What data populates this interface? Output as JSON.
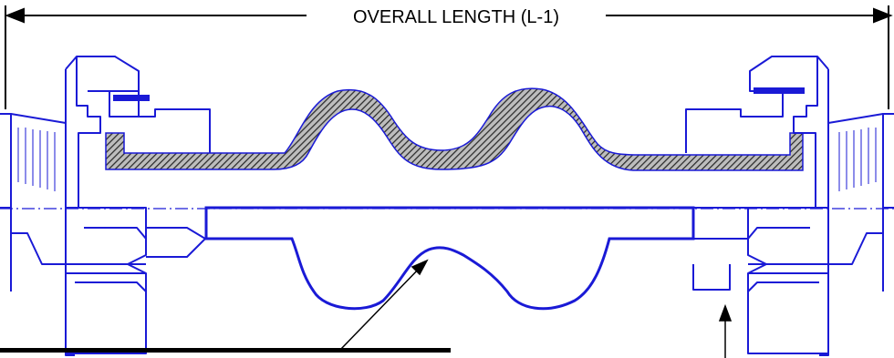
{
  "dimension": {
    "label": "OVERALL LENGTH (L-1)"
  },
  "colors": {
    "outline": "#1a1ad6",
    "dimension": "#000000",
    "hatch_dark": "#2a2a2a",
    "hatch_light": "#bdbdbd",
    "background": "#ffffff"
  }
}
